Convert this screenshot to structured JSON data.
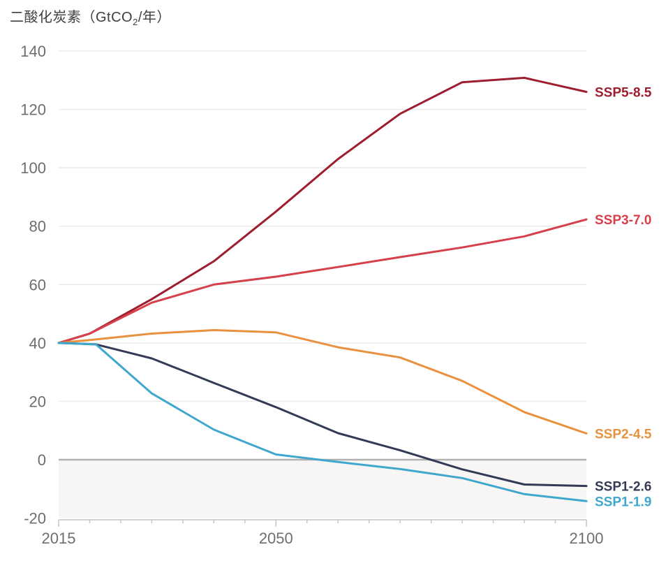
{
  "title": {
    "prefix": "二酸化炭素（GtCO",
    "sub": "2",
    "suffix": "/年）"
  },
  "chart_data": {
    "type": "line",
    "title": "二酸化炭素（GtCO2/年）",
    "xlabel": "",
    "ylabel": "GtCO2/年",
    "x_range": [
      2015,
      2100
    ],
    "y_range": [
      -20,
      140
    ],
    "y_ticks": [
      140,
      120,
      100,
      80,
      60,
      40,
      20,
      0,
      -20
    ],
    "x_ticks_labeled": [
      2015,
      2050,
      2100
    ],
    "x_tick_minor_step_years": 5,
    "grid": "horizontal",
    "zero_line": true,
    "shading_below_zero": true,
    "legend_position": "right-end-labels",
    "series": [
      {
        "name": "SSP5-8.5",
        "color": "#9e1d2f",
        "x": [
          2015,
          2020,
          2030,
          2040,
          2050,
          2060,
          2070,
          2080,
          2090,
          2100
        ],
        "values": [
          40,
          43.2,
          55,
          68,
          85,
          103,
          118.5,
          129.3,
          130.8,
          126
        ]
      },
      {
        "name": "SSP3-7.0",
        "color": "#d6404b",
        "x": [
          2015,
          2020,
          2030,
          2040,
          2050,
          2060,
          2070,
          2080,
          2090,
          2100
        ],
        "values": [
          40,
          43.2,
          53.8,
          60,
          62.7,
          66,
          69.4,
          72.7,
          76.5,
          82.3
        ]
      },
      {
        "name": "SSP2-4.5",
        "color": "#e8913f",
        "x": [
          2015,
          2020,
          2030,
          2040,
          2050,
          2060,
          2070,
          2080,
          2090,
          2100
        ],
        "values": [
          40,
          41,
          43.2,
          44.4,
          43.6,
          38.5,
          35,
          27,
          16.3,
          9
        ]
      },
      {
        "name": "SSP1-2.6",
        "color": "#333a56",
        "x": [
          2015,
          2021,
          2030,
          2040,
          2050,
          2060,
          2070,
          2080,
          2090,
          2100
        ],
        "values": [
          40,
          39.5,
          34.7,
          26.3,
          18,
          9.1,
          3.2,
          -3.3,
          -8.5,
          -9
        ]
      },
      {
        "name": "SSP1-1.9",
        "color": "#3fa7cd",
        "x": [
          2015,
          2021,
          2030,
          2040,
          2050,
          2060,
          2070,
          2080,
          2090,
          2100
        ],
        "values": [
          40,
          39.5,
          22.7,
          10.3,
          1.8,
          -0.8,
          -3.2,
          -6.3,
          -11.8,
          -14.2
        ]
      }
    ],
    "colors": {
      "gridline": "#ebeaea",
      "zero_line": "#b2b0b0",
      "negative_shade": "#f7f6f5",
      "axis": "#c6c4c4",
      "tick_label": "#6e6e6e",
      "title_text": "#3f3f3f"
    }
  }
}
